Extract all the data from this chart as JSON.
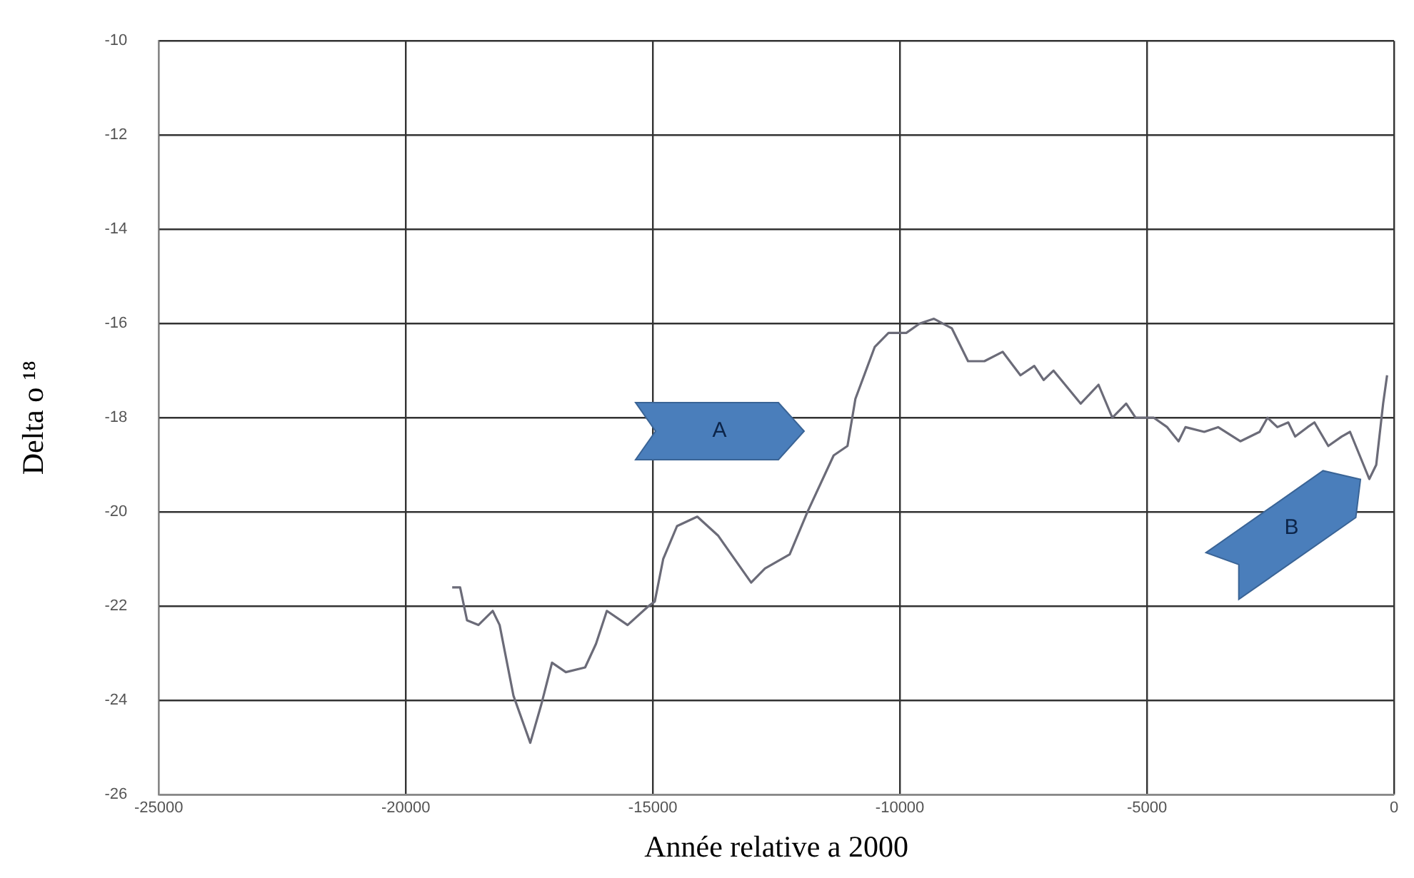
{
  "chart_data": {
    "type": "line",
    "xlabel": "Année relative a 2000",
    "ylabel": "Delta o ¹⁸",
    "xlim": [
      -25000,
      0
    ],
    "xticks": [
      -25000,
      -20000,
      -15000,
      -10000,
      -5000,
      0
    ],
    "ylim": [
      -26,
      -10
    ],
    "yticks": [
      -26,
      -24,
      -22,
      -20,
      -18,
      -16,
      -14,
      -12,
      -10
    ],
    "grid": true,
    "legend": false,
    "marker": "none",
    "line_style": "solid",
    "annotations": [
      "A",
      "B"
    ],
    "series": [
      {
        "color": "#6b6b78",
        "x": [
          -19060,
          -18900,
          -18760,
          -18530,
          -18240,
          -18100,
          -17820,
          -17480,
          -17260,
          -17040,
          -16760,
          -16370,
          -16150,
          -15930,
          -15510,
          -15090,
          -14960,
          -14790,
          -14510,
          -14100,
          -13680,
          -13010,
          -12730,
          -12230,
          -11870,
          -11340,
          -11060,
          -10900,
          -10510,
          -10230,
          -9870,
          -9600,
          -9310,
          -8950,
          -8620,
          -8290,
          -7920,
          -7560,
          -7280,
          -7090,
          -6890,
          -6340,
          -5980,
          -5700,
          -5420,
          -5230,
          -4860,
          -4590,
          -4360,
          -4220,
          -3840,
          -3560,
          -3110,
          -2720,
          -2560,
          -2360,
          -2140,
          -2000,
          -1750,
          -1610,
          -1330,
          -1060,
          -890,
          -500,
          -360,
          -220,
          -140
        ],
        "values": [
          -21.6,
          -21.6,
          -22.3,
          -22.4,
          -22.1,
          -22.4,
          -23.9,
          -24.9,
          -24.1,
          -23.2,
          -23.4,
          -23.3,
          -22.8,
          -22.1,
          -22.4,
          -22.0,
          -21.9,
          -21.0,
          -20.3,
          -20.1,
          -20.5,
          -21.5,
          -21.2,
          -20.9,
          -20.0,
          -18.8,
          -18.6,
          -17.6,
          -16.5,
          -16.2,
          -16.2,
          -16.0,
          -15.9,
          -16.1,
          -16.8,
          -16.8,
          -16.6,
          -17.1,
          -16.9,
          -17.2,
          -17.0,
          -17.7,
          -17.3,
          -18.0,
          -17.7,
          -18.0,
          -18.0,
          -18.2,
          -18.5,
          -18.2,
          -18.3,
          -18.2,
          -18.5,
          -18.3,
          -18.0,
          -18.2,
          -18.1,
          -18.4,
          -18.2,
          -18.1,
          -18.6,
          -18.4,
          -18.3,
          -19.3,
          -19.0,
          -17.7,
          -17.1
        ]
      }
    ]
  }
}
